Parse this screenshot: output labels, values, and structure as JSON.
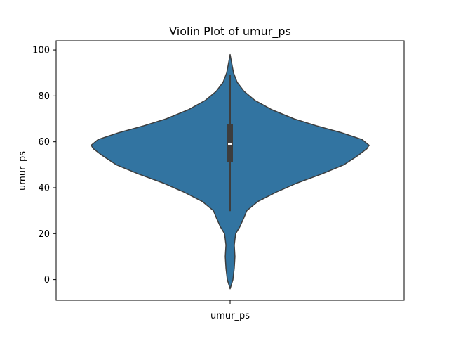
{
  "chart_data": {
    "type": "violin",
    "title": "Violin Plot of umur_ps",
    "xlabel": "",
    "ylabel": "umur_ps",
    "categories": [
      "umur_ps"
    ],
    "ylim": [
      -9,
      104
    ],
    "yticks": [
      0,
      20,
      40,
      60,
      80,
      100
    ],
    "grid": false,
    "colors": {
      "body": "#3274a1",
      "edge": "#3d3d3d",
      "box": "#3d3d3d",
      "median": "#ffffff"
    },
    "stats": {
      "min": -4,
      "q1": 51.3,
      "median": 59.0,
      "q3": 67.7,
      "max": 98,
      "whisker_low": 29.8,
      "whisker_high": 89.0
    },
    "density_profile": [
      [
        -4,
        0
      ],
      [
        0,
        0.02
      ],
      [
        5,
        0.03
      ],
      [
        10,
        0.035
      ],
      [
        15,
        0.03
      ],
      [
        20,
        0.04
      ],
      [
        23,
        0.07
      ],
      [
        27,
        0.1
      ],
      [
        30,
        0.12
      ],
      [
        34,
        0.2
      ],
      [
        38,
        0.33
      ],
      [
        42,
        0.48
      ],
      [
        46,
        0.66
      ],
      [
        50,
        0.82
      ],
      [
        54,
        0.92
      ],
      [
        57,
        0.985
      ],
      [
        58.5,
        1.0
      ],
      [
        61,
        0.95
      ],
      [
        64,
        0.8
      ],
      [
        67,
        0.62
      ],
      [
        70,
        0.46
      ],
      [
        74,
        0.3
      ],
      [
        78,
        0.18
      ],
      [
        82,
        0.1
      ],
      [
        86,
        0.05
      ],
      [
        90,
        0.025
      ],
      [
        93,
        0.015
      ],
      [
        96,
        0.006
      ],
      [
        98,
        0
      ]
    ]
  }
}
